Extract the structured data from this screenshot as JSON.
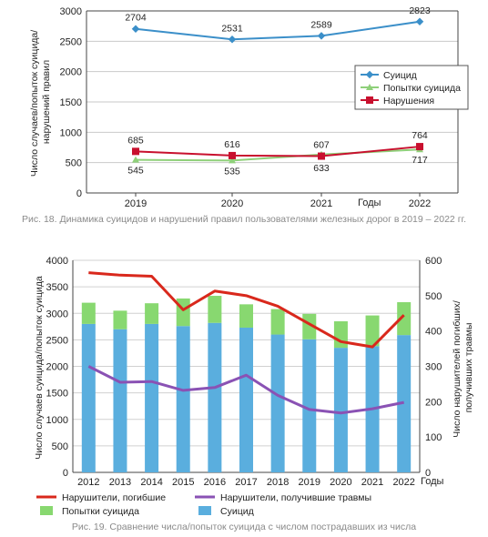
{
  "figure1": {
    "caption": "Рис. 18. Динамика суицидов и нарушений правил пользователями железных дорог в 2019 – 2022 гг.",
    "chart_data": {
      "type": "line",
      "x": [
        "2019",
        "2020",
        "2021",
        "2022"
      ],
      "xlabel": "Годы",
      "ylabel": "Число случаев/попыток суицида/ нарушений правил",
      "ylim": [
        0,
        3000
      ],
      "yticks": [
        0,
        500,
        1000,
        1500,
        2000,
        2500,
        3000
      ],
      "grid": true,
      "legend": "right",
      "series": [
        {
          "name": "Суицид",
          "color": "#3b8fc9",
          "marker": "diamond",
          "values": [
            2704,
            2531,
            2589,
            2823
          ]
        },
        {
          "name": "Попытки суицида",
          "color": "#8fd07a",
          "marker": "triangle",
          "values": [
            545,
            535,
            633,
            717
          ]
        },
        {
          "name": "Нарушения",
          "color": "#c8102e",
          "marker": "square",
          "values": [
            685,
            616,
            607,
            764
          ]
        }
      ]
    }
  },
  "figure2": {
    "caption": "Рис. 19. Сравнение числа/попыток суицида с числом пострадавших из числа",
    "chart_data": {
      "type": "bar",
      "categories": [
        "2012",
        "2013",
        "2014",
        "2015",
        "2016",
        "2017",
        "2018",
        "2019",
        "2020",
        "2021",
        "2022"
      ],
      "xlabel": "Годы",
      "ylabel_left": "Число случаев суицида/попыток суицида",
      "ylabel_right": "Число нарушителей погибших/ получивших травмы",
      "ylim_left": [
        0,
        4000
      ],
      "yticks_left": [
        0,
        500,
        1000,
        1500,
        2000,
        2500,
        3000,
        3500,
        4000
      ],
      "ylim_right": [
        0,
        600
      ],
      "yticks_right": [
        0,
        100,
        200,
        300,
        400,
        500,
        600
      ],
      "legend": "bottom",
      "bars": [
        {
          "name": "Суицид",
          "color": "#5aaede",
          "values": [
            2800,
            2700,
            2800,
            2760,
            2820,
            2730,
            2600,
            2510,
            2350,
            2380,
            2590
          ]
        },
        {
          "name": "Попытки суицида",
          "color": "#88d870",
          "values": [
            400,
            350,
            390,
            520,
            510,
            440,
            480,
            480,
            500,
            580,
            620
          ]
        }
      ],
      "lines": [
        {
          "name": "Нарушители, погибшие",
          "color": "#d9281c",
          "axis": "right",
          "values": [
            565,
            558,
            555,
            460,
            513,
            500,
            470,
            420,
            370,
            355,
            445
          ]
        },
        {
          "name": "Нарушители, получившие травмы",
          "color": "#8a52b4",
          "axis": "right",
          "values": [
            300,
            255,
            257,
            232,
            240,
            275,
            218,
            178,
            168,
            180,
            198
          ]
        }
      ]
    }
  }
}
